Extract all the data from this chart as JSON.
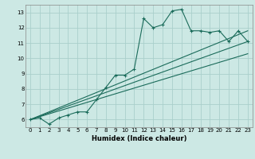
{
  "title": "",
  "xlabel": "Humidex (Indice chaleur)",
  "bg_color": "#cce8e4",
  "grid_color": "#aacfcb",
  "line_color": "#1a6b5a",
  "xlim": [
    -0.5,
    23.5
  ],
  "ylim": [
    5.5,
    13.5
  ],
  "xticks": [
    0,
    1,
    2,
    3,
    4,
    5,
    6,
    7,
    8,
    9,
    10,
    11,
    12,
    13,
    14,
    15,
    16,
    17,
    18,
    19,
    20,
    21,
    22,
    23
  ],
  "yticks": [
    6,
    7,
    8,
    9,
    10,
    11,
    12,
    13
  ],
  "main_x": [
    0,
    1,
    2,
    3,
    4,
    5,
    6,
    7,
    8,
    9,
    10,
    11,
    12,
    13,
    14,
    15,
    16,
    17,
    18,
    19,
    20,
    21,
    22,
    23
  ],
  "main_y": [
    6.0,
    6.1,
    5.7,
    6.1,
    6.3,
    6.5,
    6.5,
    7.3,
    8.1,
    8.9,
    8.9,
    9.3,
    12.6,
    12.0,
    12.2,
    13.1,
    13.2,
    11.8,
    11.8,
    11.7,
    11.8,
    11.1,
    11.8,
    11.1
  ],
  "line1_x": [
    0,
    23
  ],
  "line1_y": [
    6.0,
    11.1
  ],
  "line2_x": [
    0,
    23
  ],
  "line2_y": [
    6.0,
    10.3
  ],
  "line3_x": [
    0,
    23
  ],
  "line3_y": [
    6.0,
    11.8
  ]
}
